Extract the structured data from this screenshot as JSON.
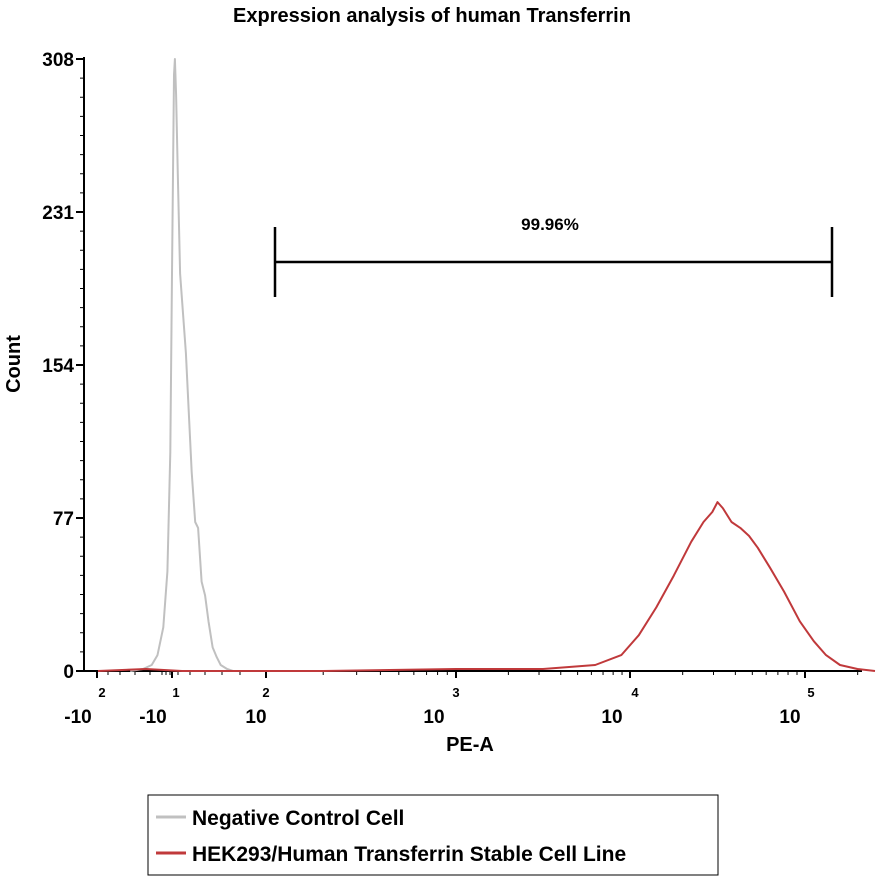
{
  "chart_data": {
    "type": "line",
    "title": "Expression analysis of human Transferrin",
    "xlabel": "PE-A",
    "ylabel": "Count",
    "ylim": [
      0,
      308
    ],
    "y_ticks": [
      "0",
      "77",
      "154",
      "231",
      "308"
    ],
    "x_ticks": [
      {
        "base": "-10",
        "exp": "2"
      },
      {
        "base": "-10",
        "exp": "1"
      },
      {
        "base": "10",
        "exp": "2"
      },
      {
        "base": "10",
        "exp": "3"
      },
      {
        "base": "10",
        "exp": "4"
      },
      {
        "base": "10",
        "exp": "5"
      }
    ],
    "gate": {
      "label": "99.96%"
    },
    "legend_position": "bottom",
    "series": [
      {
        "name": "Negative Control Cell",
        "color": "#c0c0c0",
        "points": [
          [
            -0.72,
            0
          ],
          [
            -0.5,
            1
          ],
          [
            -0.35,
            3
          ],
          [
            -0.25,
            8
          ],
          [
            -0.15,
            22
          ],
          [
            -0.08,
            50
          ],
          [
            -0.03,
            110
          ],
          [
            0,
            200
          ],
          [
            0.02,
            260
          ],
          [
            0.035,
            300
          ],
          [
            0.05,
            308
          ],
          [
            0.07,
            290
          ],
          [
            0.1,
            250
          ],
          [
            0.14,
            200
          ],
          [
            0.19,
            180
          ],
          [
            0.24,
            160
          ],
          [
            0.29,
            130
          ],
          [
            0.34,
            100
          ],
          [
            0.4,
            75
          ],
          [
            0.45,
            72
          ],
          [
            0.51,
            45
          ],
          [
            0.57,
            38
          ],
          [
            0.63,
            25
          ],
          [
            0.7,
            12
          ],
          [
            0.77,
            7
          ],
          [
            0.84,
            3
          ],
          [
            0.95,
            1
          ],
          [
            1.05,
            0
          ],
          [
            1.35,
            0
          ]
        ]
      },
      {
        "name": "HEK293/Human Transferrin Stable Cell Line",
        "color": "#c0393b",
        "points": [
          [
            -0.2,
            0
          ],
          [
            0.6,
            1
          ],
          [
            1.2,
            0
          ],
          [
            2.3,
            0
          ],
          [
            3.0,
            1
          ],
          [
            3.5,
            1
          ],
          [
            3.8,
            3
          ],
          [
            3.95,
            8
          ],
          [
            4.05,
            18
          ],
          [
            4.15,
            32
          ],
          [
            4.25,
            48
          ],
          [
            4.35,
            65
          ],
          [
            4.42,
            75
          ],
          [
            4.47,
            80
          ],
          [
            4.5,
            85
          ],
          [
            4.53,
            82
          ],
          [
            4.58,
            75
          ],
          [
            4.63,
            72
          ],
          [
            4.68,
            68
          ],
          [
            4.73,
            62
          ],
          [
            4.8,
            52
          ],
          [
            4.88,
            40
          ],
          [
            4.97,
            25
          ],
          [
            5.05,
            15
          ],
          [
            5.12,
            8
          ],
          [
            5.2,
            3
          ],
          [
            5.3,
            1
          ],
          [
            5.4,
            0
          ]
        ]
      }
    ]
  }
}
